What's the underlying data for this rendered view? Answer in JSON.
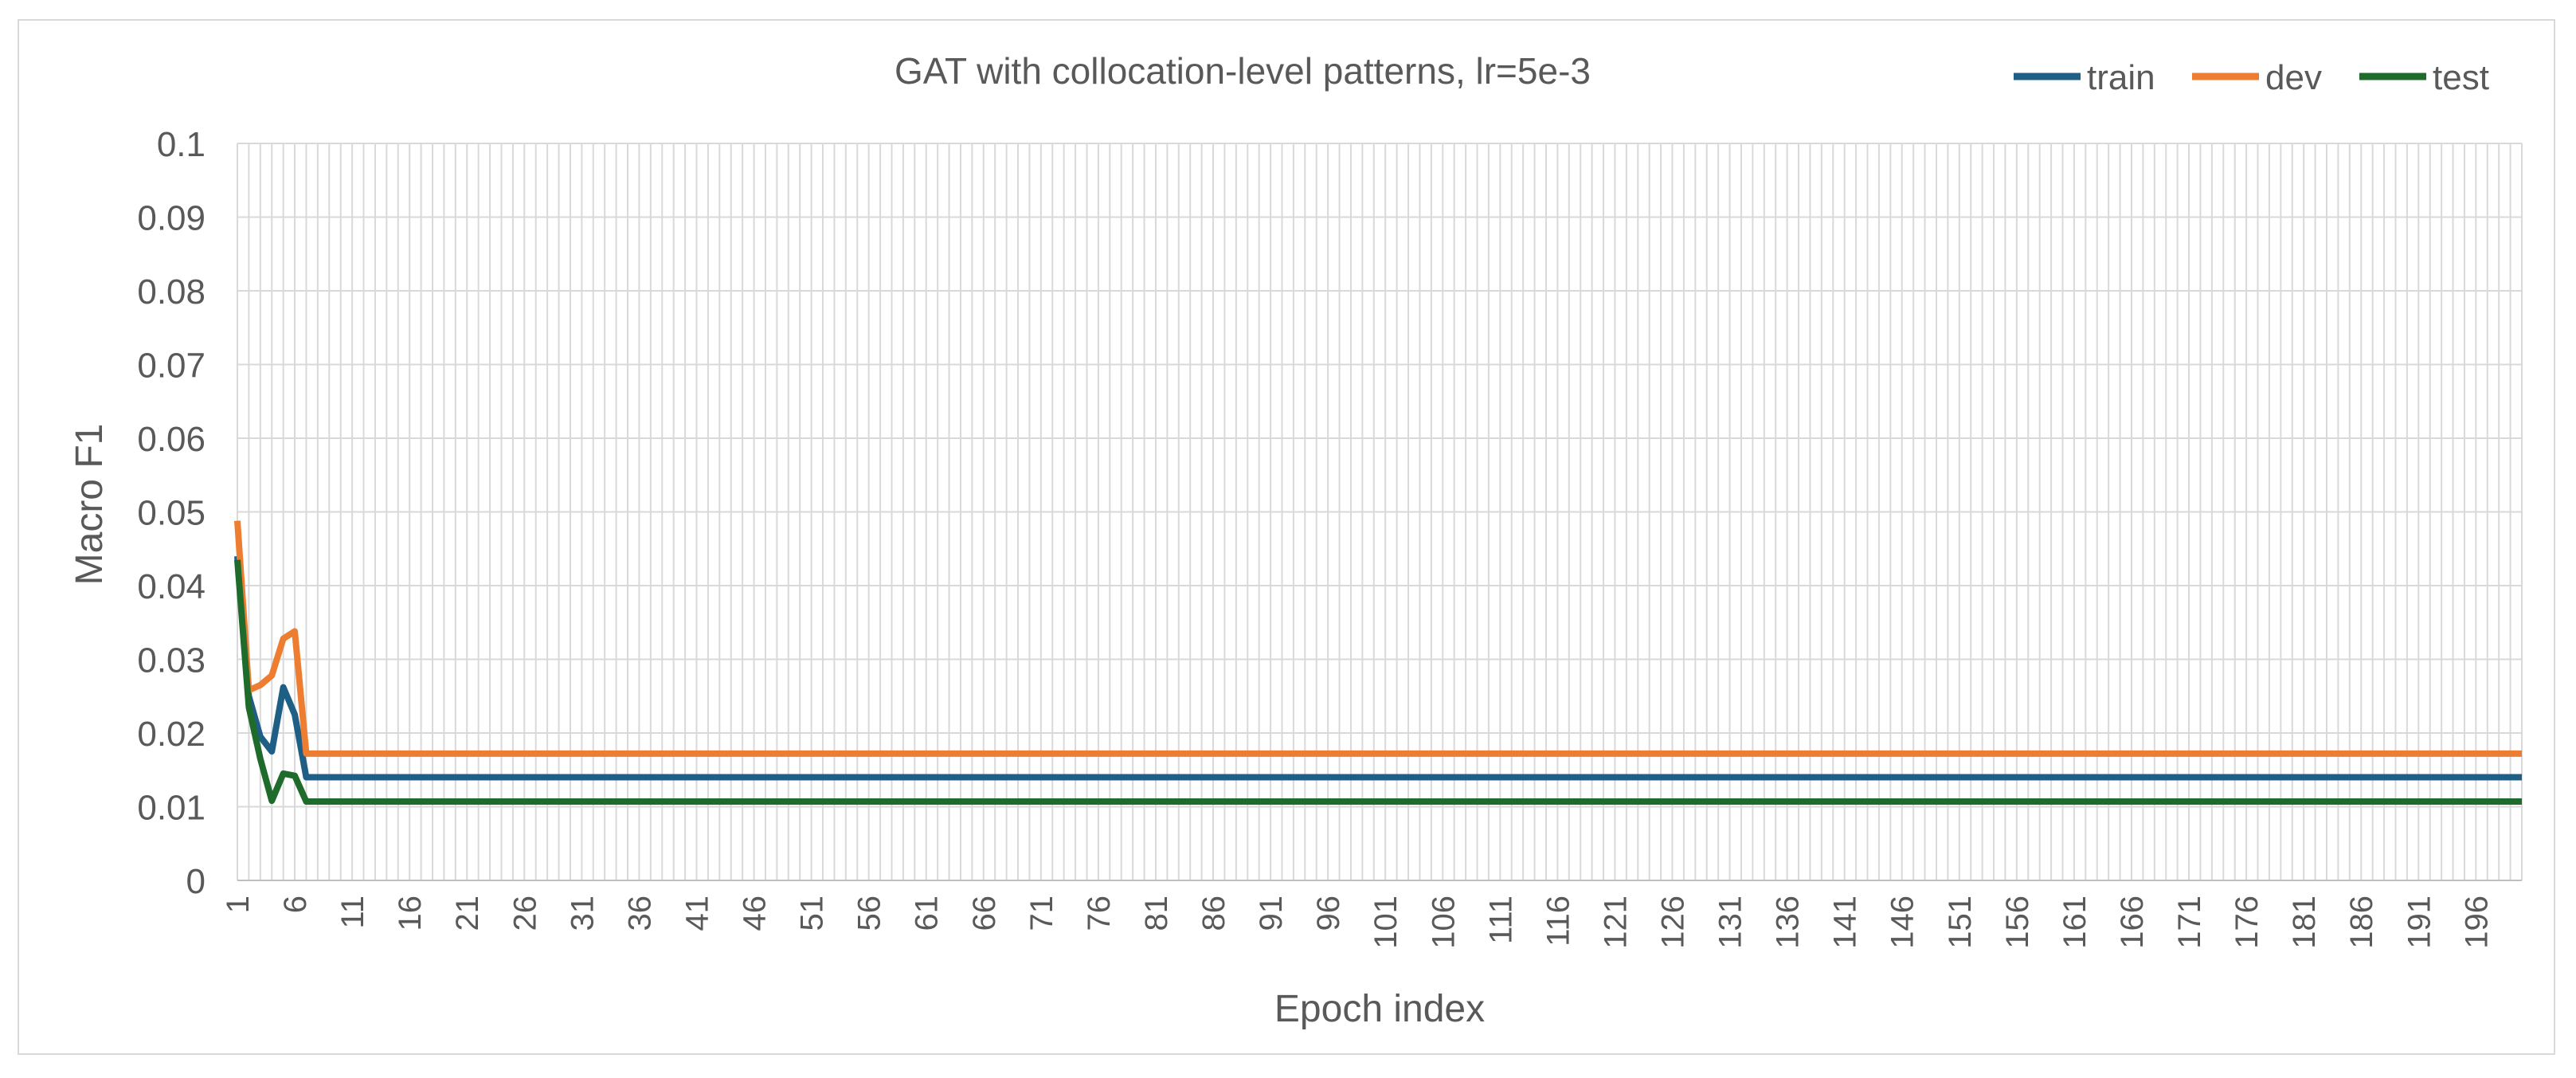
{
  "chart_data": {
    "type": "line",
    "title": "GAT with collocation-level patterns, lr=5e-3",
    "xlabel": "Epoch index",
    "ylabel": "Macro F1",
    "xlim": [
      1,
      200
    ],
    "ylim": [
      0,
      0.1
    ],
    "yticks": [
      "0",
      "0.01",
      "0.02",
      "0.03",
      "0.04",
      "0.05",
      "0.06",
      "0.07",
      "0.08",
      "0.09",
      "0.1"
    ],
    "xticks": [
      "1",
      "6",
      "11",
      "16",
      "21",
      "26",
      "31",
      "36",
      "41",
      "46",
      "51",
      "56",
      "61",
      "66",
      "71",
      "76",
      "81",
      "86",
      "91",
      "96",
      "101",
      "106",
      "111",
      "116",
      "121",
      "126",
      "131",
      "136",
      "141",
      "146",
      "151",
      "156",
      "161",
      "166",
      "171",
      "176",
      "181",
      "186",
      "191",
      "196"
    ],
    "grid": true,
    "legend_position": "top-right",
    "series": [
      {
        "name": "train",
        "color": "#1f5f85",
        "head": [
          0.044,
          0.025,
          0.0195,
          0.0175,
          0.0262,
          0.0225,
          0.014
        ],
        "tail_value": 0.014,
        "epochs": 200
      },
      {
        "name": "dev",
        "color": "#ed7d31",
        "head": [
          0.0488,
          0.0258,
          0.0265,
          0.0278,
          0.0328,
          0.0338,
          0.0172
        ],
        "tail_value": 0.0172,
        "epochs": 200
      },
      {
        "name": "test",
        "color": "#1e6b2c",
        "head": [
          0.0435,
          0.0235,
          0.0165,
          0.0108,
          0.0145,
          0.0142,
          0.0107
        ],
        "tail_value": 0.0107,
        "epochs": 200
      }
    ]
  }
}
